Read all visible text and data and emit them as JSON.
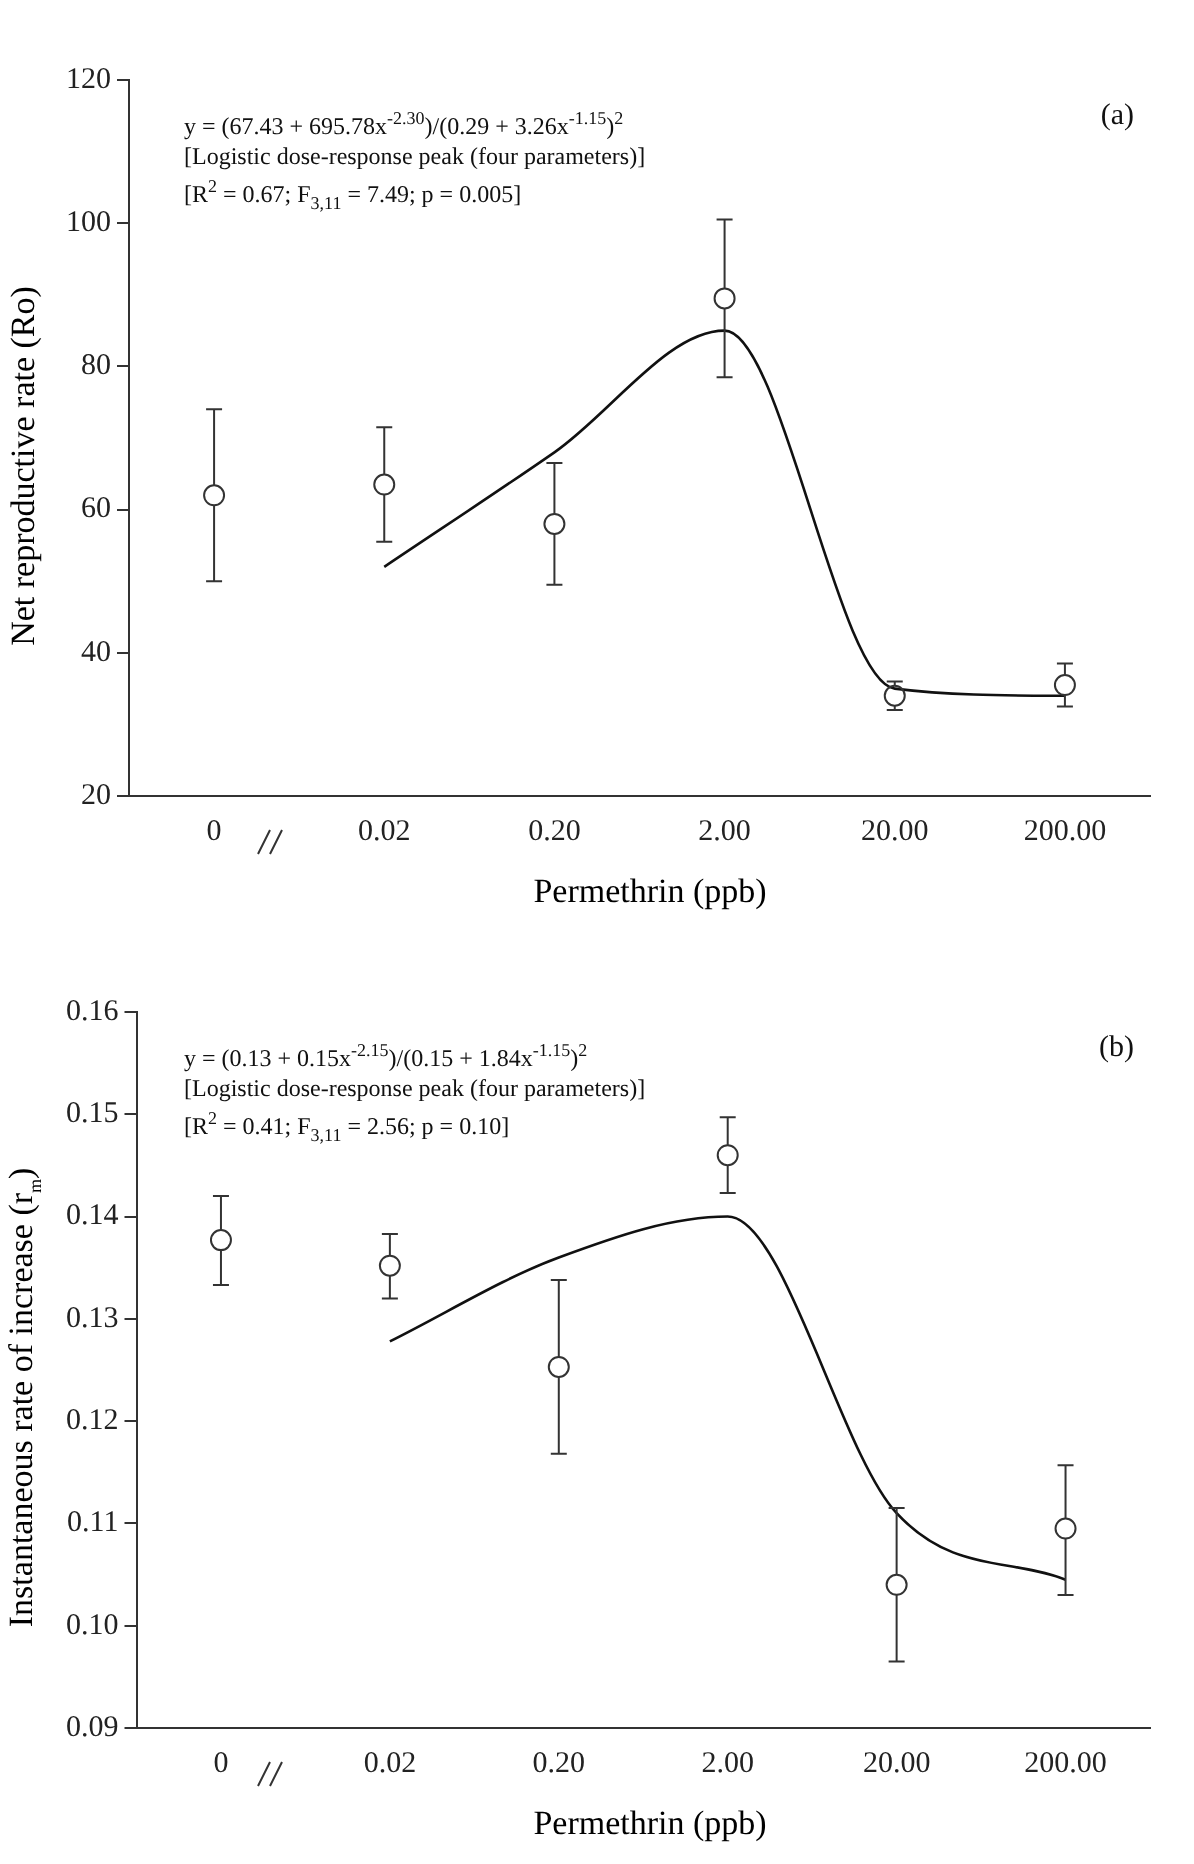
{
  "chart_data": [
    {
      "type": "scatter",
      "title": "(a)",
      "xlabel": "Permethrin (ppb)",
      "ylabel": "Net reproductive rate (Ro)",
      "categories": [
        "0",
        "0.02",
        "0.20",
        "2.00",
        "20.00",
        "200.00"
      ],
      "ylim": [
        20,
        120
      ],
      "yticks": [
        20,
        40,
        60,
        80,
        100,
        120
      ],
      "grid": false,
      "legend": false,
      "annotations": [
        "y = (67.43 + 695.78x$^{-2.30}$)/(0.29 + 3.26x$^{-1.15}$)$^{2}$",
        "[Logistic dose-response peak (four parameters)]",
        "[R$^{2}$ = 0.67; F$_{3,11}$ = 7.49; p = 0.005]"
      ],
      "series": [
        {
          "type": "scatter",
          "marker": "circle",
          "color": "#333333",
          "values": [
            62,
            63.5,
            58,
            89.5,
            34,
            35.5
          ],
          "errors": [
            [
              50,
              74
            ],
            [
              55.5,
              71.5
            ],
            [
              49.5,
              66.5
            ],
            [
              78.5,
              100.5
            ],
            [
              32,
              36
            ],
            [
              32.5,
              38.5
            ]
          ]
        },
        {
          "type": "line",
          "marker": "none",
          "color": "#111111",
          "values": [
            null,
            52,
            68,
            85,
            35,
            34
          ]
        }
      ]
    },
    {
      "type": "scatter",
      "title": "(b)",
      "xlabel": "Permethrin (ppb)",
      "ylabel": "Instantaneous rate of increase (r$_{m}$)",
      "categories": [
        "0",
        "0.02",
        "0.20",
        "2.00",
        "20.00",
        "200.00"
      ],
      "ylim": [
        0.09,
        0.16
      ],
      "yticks": [
        {
          "value": 0.09,
          "label": "0.09"
        },
        {
          "value": 0.1,
          "label": "0.10"
        },
        {
          "value": 0.11,
          "label": "0.11"
        },
        {
          "value": 0.12,
          "label": "0.12"
        },
        {
          "value": 0.13,
          "label": "0.13"
        },
        {
          "value": 0.14,
          "label": "0.14"
        },
        {
          "value": 0.15,
          "label": "0.15"
        },
        {
          "value": 0.16,
          "label": "0.16"
        }
      ],
      "grid": false,
      "legend": false,
      "annotations": [
        "y = (0.13 + 0.15x$^{-2.15}$)/(0.15 + 1.84x$^{-1.15}$)$^{2}$",
        "[Logistic dose-response peak (four parameters)]",
        "[R$^{2}$ = 0.41; F$_{3,11}$ = 2.56; p = 0.10]"
      ],
      "series": [
        {
          "type": "scatter",
          "marker": "circle",
          "color": "#333333",
          "values": [
            0.1377,
            0.1352,
            0.1253,
            0.146,
            0.104,
            0.1095
          ],
          "errors": [
            [
              0.1333,
              0.142
            ],
            [
              0.132,
              0.1383
            ],
            [
              0.1168,
              0.1338
            ],
            [
              0.1423,
              0.1497
            ],
            [
              0.0965,
              0.1115
            ],
            [
              0.103,
              0.1157
            ]
          ]
        },
        {
          "type": "line",
          "marker": "none",
          "color": "#111111",
          "values": [
            null,
            0.1278,
            0.136,
            0.14,
            0.111,
            0.1045
          ]
        }
      ]
    }
  ]
}
